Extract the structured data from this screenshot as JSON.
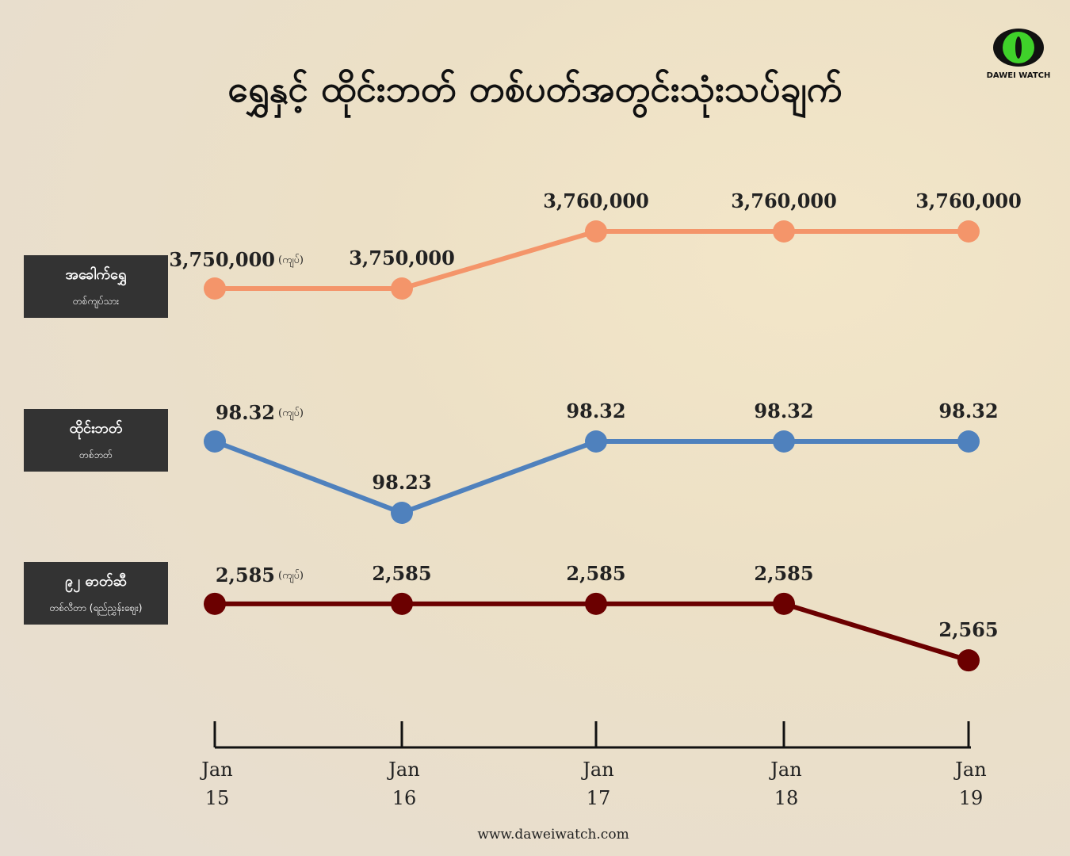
{
  "header": {
    "title": "ရွှေနှင့် ထိုင်းဘတ် တစ်ပတ်အတွင်းသုံးသပ်ချက်",
    "logo": "DAWEI WATCH"
  },
  "x_axis": {
    "categories": [
      "Jan 15",
      "Jan 16",
      "Jan 17",
      "Jan 18",
      "Jan 19"
    ]
  },
  "chart_data": [
    {
      "type": "line",
      "label": "အခေါက်ရွှေ",
      "sublabel": "တစ်ကျပ်သား",
      "unit": "(ကျပ်)",
      "color": "#f4956a",
      "values": [
        3750000,
        3750000,
        3760000,
        3760000,
        3760000
      ],
      "value_labels": [
        "3,750,000",
        "3,750,000",
        "3,760,000",
        "3,760,000",
        "3,760,000"
      ],
      "ylim": [
        3745000,
        3765000
      ]
    },
    {
      "type": "line",
      "label": "ထိုင်းဘတ်",
      "sublabel": "တစ်ဘတ်",
      "unit": "(ကျပ်)",
      "color": "#4f81bd",
      "values": [
        98.32,
        98.23,
        98.32,
        98.32,
        98.32
      ],
      "value_labels": [
        "98.32",
        "98.23",
        "98.32",
        "98.32",
        "98.32"
      ],
      "ylim": [
        98.2,
        98.35
      ]
    },
    {
      "type": "line",
      "label": "၉၂ ဓာတ်ဆီ",
      "sublabel": "တစ်လီတာ (ရည်ညွှန်းဈေး)",
      "unit": "(ကျပ်)",
      "color": "#6b0000",
      "values": [
        2585,
        2585,
        2585,
        2585,
        2565
      ],
      "value_labels": [
        "2,585",
        "2,585",
        "2,585",
        "2,585",
        "2,565"
      ],
      "ylim": [
        2560,
        2590
      ]
    }
  ],
  "footer": "www.daweiwatch.com"
}
